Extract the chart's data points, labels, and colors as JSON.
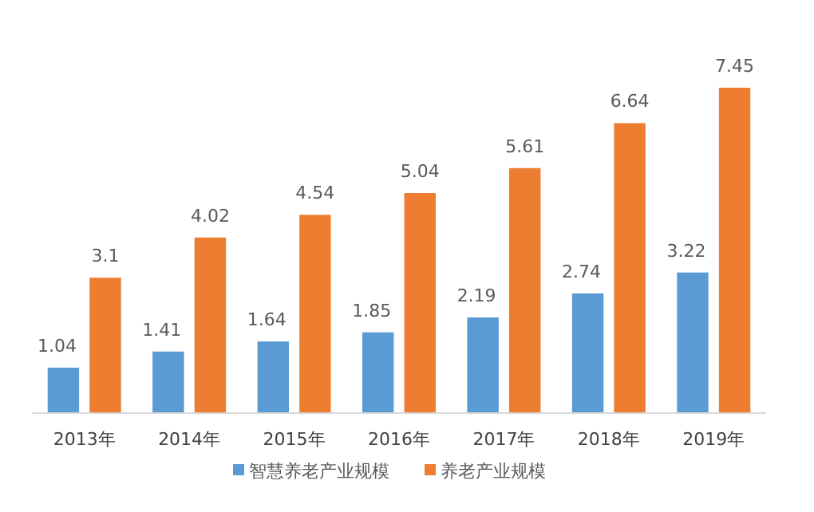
{
  "chart_data": {
    "type": "bar",
    "categories": [
      "2013年",
      "2014年",
      "2015年",
      "2016年",
      "2017年",
      "2018年",
      "2019年"
    ],
    "series": [
      {
        "name": "智慧养老产业规模",
        "color": "#5b9bd5",
        "values": [
          1.04,
          1.41,
          1.64,
          1.85,
          2.19,
          2.74,
          3.22
        ]
      },
      {
        "name": "养老产业规模",
        "color": "#ed7d31",
        "values": [
          3.1,
          4.02,
          4.54,
          5.04,
          5.61,
          6.64,
          7.45
        ]
      }
    ],
    "data_labels": true,
    "legend": "bottom"
  }
}
